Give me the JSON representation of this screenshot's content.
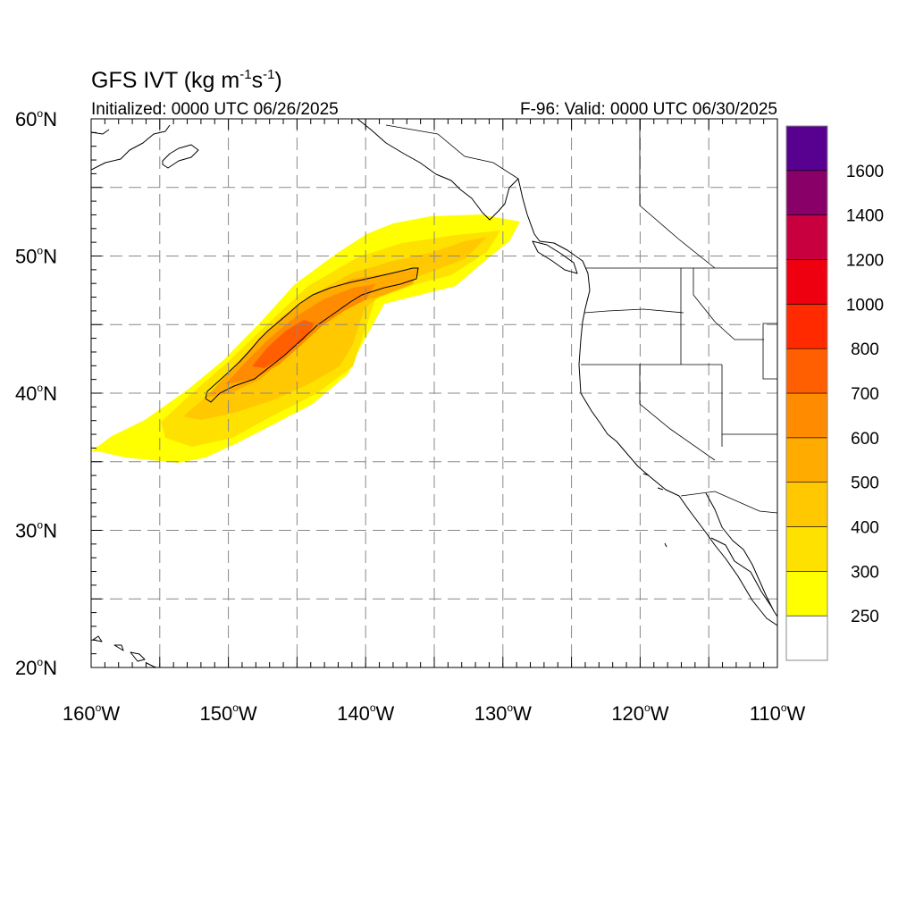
{
  "title": {
    "main": "GFS IVT (kg m",
    "exp1": "-1",
    "mid": "s",
    "exp2": "-1",
    "close": ")"
  },
  "subtitle_left": "Initialized: 0000 UTC 06/26/2025",
  "subtitle_right": "F-96: Valid: 0000 UTC 06/30/2025",
  "lat_labels": [
    {
      "lat": 60,
      "deg": "60",
      "hem": "N"
    },
    {
      "lat": 50,
      "deg": "50",
      "hem": "N"
    },
    {
      "lat": 40,
      "deg": "40",
      "hem": "N"
    },
    {
      "lat": 30,
      "deg": "30",
      "hem": "N"
    },
    {
      "lat": 20,
      "deg": "20",
      "hem": "N"
    }
  ],
  "lon_labels": [
    {
      "lon": -160,
      "deg": "160",
      "hem": "W"
    },
    {
      "lon": -150,
      "deg": "150",
      "hem": "W"
    },
    {
      "lon": -140,
      "deg": "140",
      "hem": "W"
    },
    {
      "lon": -130,
      "deg": "130",
      "hem": "W"
    },
    {
      "lon": -120,
      "deg": "120",
      "hem": "W"
    },
    {
      "lon": -110,
      "deg": "110",
      "hem": "W"
    }
  ],
  "colorbar": {
    "levels": [
      "250",
      "300",
      "400",
      "500",
      "600",
      "700",
      "800",
      "1000",
      "1200",
      "1400",
      "1600"
    ],
    "colors": [
      "#ffffff",
      "#ffff00",
      "#ffe100",
      "#ffc800",
      "#ffab00",
      "#ff8c00",
      "#ff5f00",
      "#ff2a00",
      "#ee0010",
      "#c80040",
      "#880068",
      "#580090"
    ]
  },
  "map_data": {
    "lon_range": [
      -160,
      -110
    ],
    "lat_range": [
      20,
      60
    ],
    "grid_interval_deg": 5,
    "contour_level": "500"
  }
}
